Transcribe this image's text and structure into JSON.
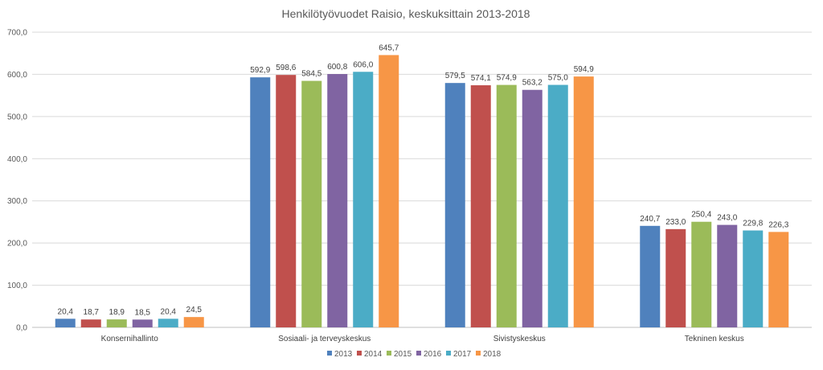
{
  "chart_data": {
    "type": "bar",
    "title": "Henkilötyövuodet Raisio, keskuksittain 2013-2018",
    "xlabel": "",
    "ylabel": "",
    "ylim": [
      0,
      700
    ],
    "yticks": [
      "0,0",
      "100,0",
      "200,0",
      "300,0",
      "400,0",
      "500,0",
      "600,0",
      "700,0"
    ],
    "grid": true,
    "legend_position": "bottom",
    "categories": [
      "Konsernihallinto",
      "Sosiaali- ja terveyskeskus",
      "Sivistyskeskus",
      "Tekninen keskus"
    ],
    "series": [
      {
        "name": "2013",
        "color": "#4F81BD",
        "values": [
          20.4,
          592.9,
          579.5,
          240.7
        ],
        "labels": [
          "20,4",
          "592,9",
          "579,5",
          "240,7"
        ]
      },
      {
        "name": "2014",
        "color": "#C0504D",
        "values": [
          18.7,
          598.6,
          574.1,
          233.0
        ],
        "labels": [
          "18,7",
          "598,6",
          "574,1",
          "233,0"
        ]
      },
      {
        "name": "2015",
        "color": "#9BBB59",
        "values": [
          18.9,
          584.5,
          574.9,
          250.4
        ],
        "labels": [
          "18,9",
          "584,5",
          "574,9",
          "250,4"
        ]
      },
      {
        "name": "2016",
        "color": "#8064A2",
        "values": [
          18.5,
          600.8,
          563.2,
          243.0
        ],
        "labels": [
          "18,5",
          "600,8",
          "563,2",
          "243,0"
        ]
      },
      {
        "name": "2017",
        "color": "#4BACC6",
        "values": [
          20.4,
          606.0,
          575.0,
          229.8
        ],
        "labels": [
          "20,4",
          "606,0",
          "575,0",
          "229,8"
        ]
      },
      {
        "name": "2018",
        "color": "#F79646",
        "values": [
          24.5,
          645.7,
          594.9,
          226.3
        ],
        "labels": [
          "24,5",
          "645,7",
          "594,9",
          "226,3"
        ]
      }
    ]
  }
}
